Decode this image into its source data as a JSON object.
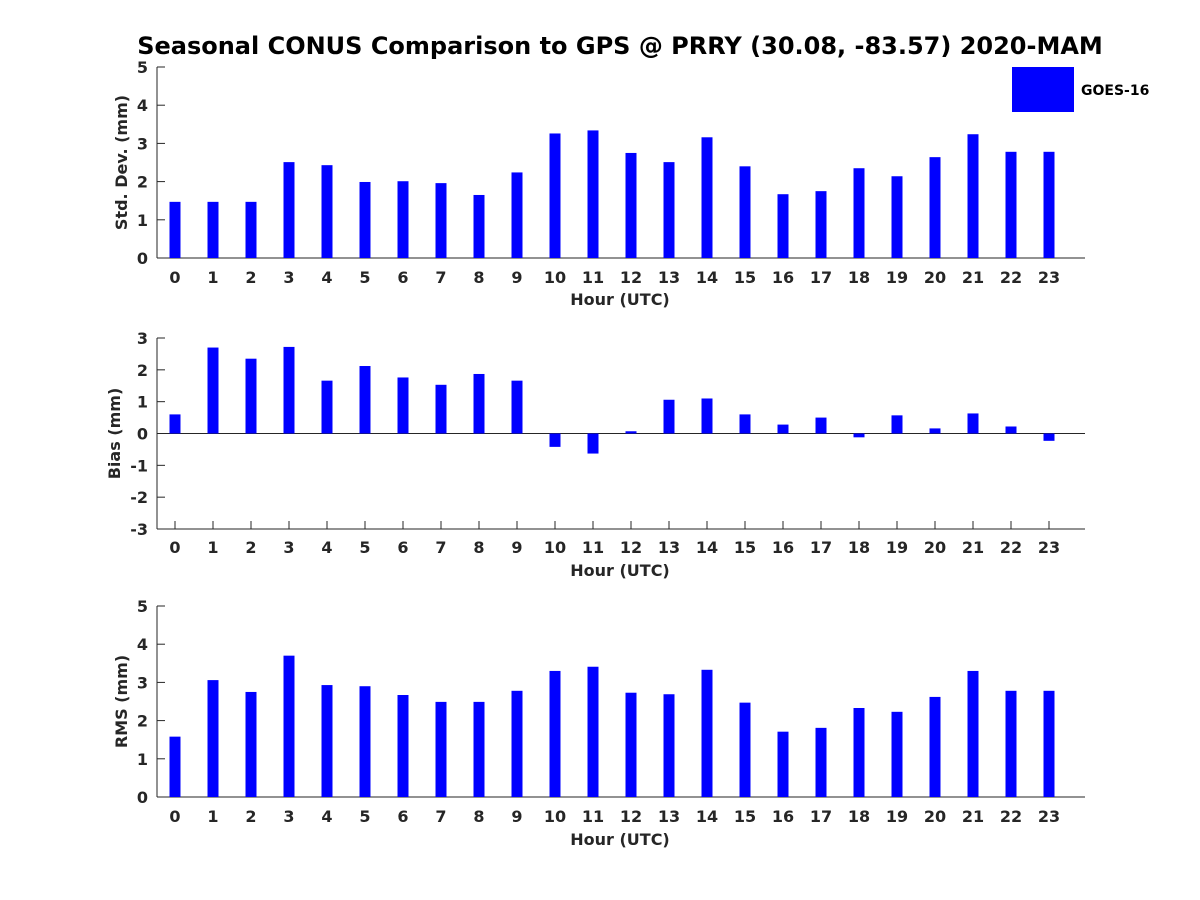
{
  "chart_data": {
    "type": "bar",
    "title": "Seasonal CONUS Comparison to GPS @ PRRY (30.08, -83.57) 2020-MAM",
    "legend": {
      "entries": [
        "GOES-16"
      ],
      "position": "top-right"
    },
    "series_color": "#0000ff",
    "subplots": [
      {
        "id": "std",
        "ylabel": "Std. Dev. (mm)",
        "xlabel": "Hour (UTC)",
        "ylim": [
          0,
          5
        ],
        "yticks": [
          "0",
          "1",
          "2",
          "3",
          "4",
          "5"
        ],
        "categories": [
          "0",
          "1",
          "2",
          "3",
          "4",
          "5",
          "6",
          "7",
          "8",
          "9",
          "10",
          "11",
          "12",
          "13",
          "14",
          "15",
          "16",
          "17",
          "18",
          "19",
          "20",
          "21",
          "22",
          "23"
        ],
        "values": [
          1.47,
          1.47,
          1.47,
          2.51,
          2.43,
          1.99,
          2.01,
          1.96,
          1.65,
          2.24,
          3.26,
          3.34,
          2.75,
          2.51,
          3.16,
          2.4,
          1.67,
          1.75,
          2.35,
          2.14,
          2.64,
          3.24,
          2.78,
          2.78
        ]
      },
      {
        "id": "bias",
        "ylabel": "Bias (mm)",
        "xlabel": "Hour (UTC)",
        "ylim": [
          -3,
          3
        ],
        "yticks": [
          "-3",
          "-2",
          "-1",
          "0",
          "1",
          "2",
          "3"
        ],
        "categories": [
          "0",
          "1",
          "2",
          "3",
          "4",
          "5",
          "6",
          "7",
          "8",
          "9",
          "10",
          "11",
          "12",
          "13",
          "14",
          "15",
          "16",
          "17",
          "18",
          "19",
          "20",
          "21",
          "22",
          "23"
        ],
        "values": [
          0.6,
          2.7,
          2.35,
          2.72,
          1.66,
          2.12,
          1.76,
          1.53,
          1.87,
          1.66,
          -0.42,
          -0.63,
          0.07,
          1.06,
          1.1,
          0.6,
          0.28,
          0.5,
          -0.12,
          0.57,
          0.16,
          0.63,
          0.22,
          -0.23
        ]
      },
      {
        "id": "rms",
        "ylabel": "RMS (mm)",
        "xlabel": "Hour (UTC)",
        "ylim": [
          0,
          5
        ],
        "yticks": [
          "0",
          "1",
          "2",
          "3",
          "4",
          "5"
        ],
        "categories": [
          "0",
          "1",
          "2",
          "3",
          "4",
          "5",
          "6",
          "7",
          "8",
          "9",
          "10",
          "11",
          "12",
          "13",
          "14",
          "15",
          "16",
          "17",
          "18",
          "19",
          "20",
          "21",
          "22",
          "23"
        ],
        "values": [
          1.58,
          3.06,
          2.75,
          3.7,
          2.93,
          2.9,
          2.67,
          2.49,
          2.49,
          2.78,
          3.3,
          3.41,
          2.73,
          2.69,
          3.33,
          2.47,
          1.71,
          1.81,
          2.33,
          2.23,
          2.62,
          3.3,
          2.78,
          2.78
        ]
      }
    ]
  }
}
